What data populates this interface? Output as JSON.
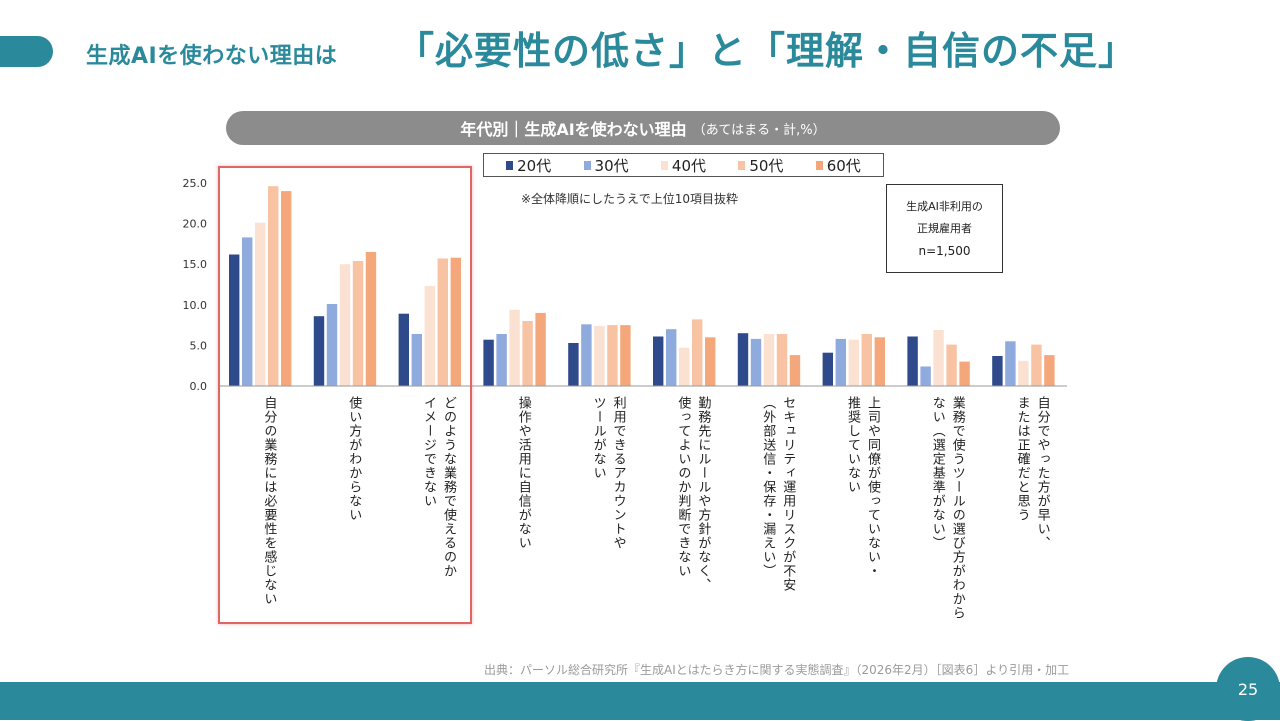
{
  "slide": {
    "title_small": "生成AIを使わない理由は",
    "title_big": "「必要性の低さ」と「理解・自信の不足」",
    "page_number": "25",
    "source": "出典：パーソル総合研究所『生成AIとはたらき方に関する実態調査』（2026年2月）［図表6］より引用・加工"
  },
  "chart_header": {
    "title": "年代別｜生成AIを使わない理由",
    "subtitle": "（あてはまる・計,%）"
  },
  "note": "※全体降順にしたうえで上位10項目抜粋",
  "sample": {
    "line1": "生成AI非利用の",
    "line2": "正規雇用者",
    "n": "n=1,500"
  },
  "colors": {
    "accent": "#2a8a9c",
    "series": [
      "#2e4a8b",
      "#8faadc",
      "#fbe1d2",
      "#f8c3a3",
      "#f4a77b"
    ],
    "highlight": "#e06666"
  },
  "chart_data": {
    "type": "bar",
    "title": "年代別｜生成AIを使わない理由",
    "ylabel": "%",
    "ylim": [
      0,
      25
    ],
    "yticks": [
      "0.0",
      "5.0",
      "10.0",
      "15.0",
      "20.0",
      "25.0"
    ],
    "categories": [
      "自分の業務には必要性を感じない",
      "使い方がわからない",
      "どのような業務で使えるのか\nイメージできない",
      "操作や活用に自信がない",
      "利用できるアカウントや\nツールがない",
      "勤務先にルールや方針がなく、\n使ってよいのか判断できない",
      "セキュリティ運用リスクが不安\n（外部送信・保存・漏えい）",
      "上司や同僚が使っていない・\n推奨していない",
      "業務で使うツールの選び方がわから\nない（選定基準がない）",
      "自分でやった方が早い、\nまたは正確だと思う"
    ],
    "series": [
      {
        "name": "20代",
        "values": [
          16.2,
          8.6,
          8.9,
          5.7,
          5.3,
          6.1,
          6.5,
          4.1,
          6.1,
          3.7
        ]
      },
      {
        "name": "30代",
        "values": [
          18.3,
          10.1,
          6.4,
          6.4,
          7.6,
          7.0,
          5.8,
          5.8,
          2.4,
          5.5
        ]
      },
      {
        "name": "40代",
        "values": [
          20.1,
          15.0,
          12.3,
          9.4,
          7.4,
          4.7,
          6.4,
          5.7,
          6.9,
          3.1
        ]
      },
      {
        "name": "50代",
        "values": [
          24.6,
          15.4,
          15.7,
          8.0,
          7.5,
          8.2,
          6.4,
          6.4,
          5.1,
          5.1
        ]
      },
      {
        "name": "60代",
        "values": [
          24.0,
          16.5,
          15.8,
          9.0,
          7.5,
          6.0,
          3.8,
          6.0,
          3.0,
          3.8
        ]
      }
    ]
  }
}
